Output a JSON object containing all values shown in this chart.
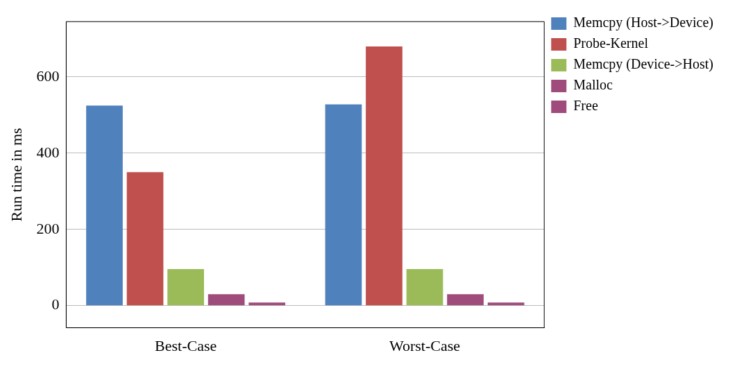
{
  "chart_data": {
    "type": "bar",
    "ylabel": "Run time in ms",
    "categories": [
      "Best-Case",
      "Worst-Case"
    ],
    "series": [
      {
        "name": "Memcpy (Host->Device)",
        "color": "#4f81bd",
        "values": [
          525,
          528
        ]
      },
      {
        "name": "Probe-Kernel",
        "color": "#c0504d",
        "values": [
          350,
          680
        ]
      },
      {
        "name": "Memcpy (Device->Host)",
        "color": "#9bbb59",
        "values": [
          96,
          96
        ]
      },
      {
        "name": "Malloc",
        "color": "#9f4c7c",
        "values": [
          30,
          30
        ]
      },
      {
        "name": "Free",
        "color": "#9f4c7c",
        "values": [
          8,
          8
        ]
      }
    ],
    "ylim": [
      -58,
      745
    ],
    "yticks": [
      0,
      200,
      400,
      600
    ],
    "grid": "y",
    "legend": "right"
  }
}
